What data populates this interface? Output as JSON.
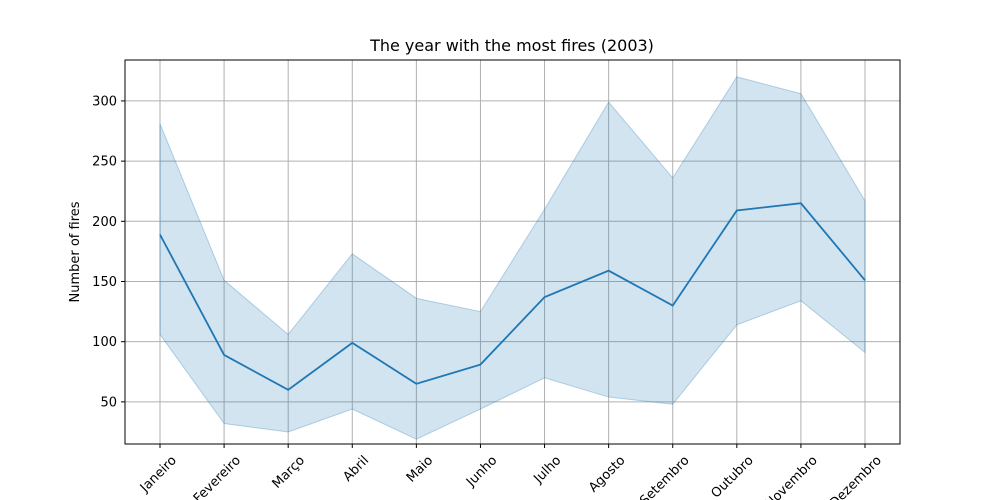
{
  "chart_data": {
    "type": "line",
    "title": "The year with the most fires (2003)",
    "xlabel": "",
    "ylabel": "Number of fires",
    "categories": [
      "Janeiro",
      "Fevereiro",
      "Março",
      "Abril",
      "Maio",
      "Junho",
      "Julho",
      "Agosto",
      "Setembro",
      "Outubro",
      "Novembro",
      "Dezembro"
    ],
    "series": [
      {
        "values": [
          189,
          89,
          60,
          99,
          65,
          81,
          137,
          159,
          130,
          209,
          215,
          151
        ],
        "lower": [
          106,
          32,
          25,
          44,
          19,
          44,
          70,
          54,
          48,
          114,
          134,
          91
        ],
        "upper": [
          281,
          151,
          106,
          173,
          136,
          125,
          210,
          299,
          236,
          320,
          306,
          217
        ]
      }
    ],
    "ylim": [
      15,
      334
    ],
    "yticks": [
      50,
      100,
      150,
      200,
      250,
      300
    ],
    "grid": true,
    "colors": {
      "line": "#1f77b4",
      "band": "#1f77b4",
      "grid": "#b0b0b0"
    }
  }
}
